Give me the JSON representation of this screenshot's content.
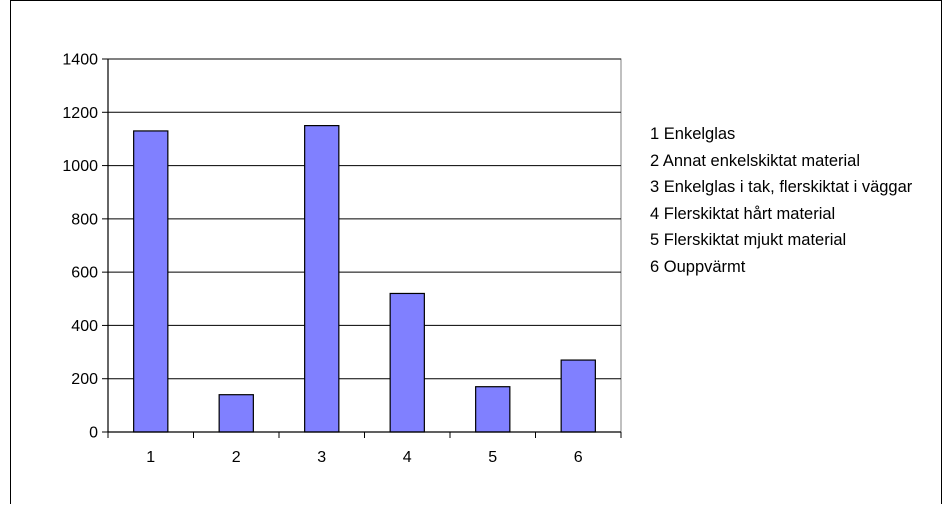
{
  "chart_data": {
    "type": "bar",
    "categories": [
      "1",
      "2",
      "3",
      "4",
      "5",
      "6"
    ],
    "values": [
      1130,
      140,
      1150,
      520,
      170,
      270
    ],
    "ylim": [
      0,
      1400
    ],
    "yticks": [
      0,
      200,
      400,
      600,
      800,
      1000,
      1200,
      1400
    ],
    "grid": true,
    "legend_position": "right",
    "colors": {
      "bar_fill": "#8080ff",
      "bar_stroke": "#000000",
      "grid": "#000000"
    },
    "legend_items": [
      "1 Enkelglas",
      "2 Annat enkelskiktat material",
      "3 Enkelglas i tak, flerskiktat i väggar",
      "4 Flerskiktat hårt material",
      "5 Flerskiktat mjukt material",
      "6 Ouppvärmt"
    ]
  }
}
